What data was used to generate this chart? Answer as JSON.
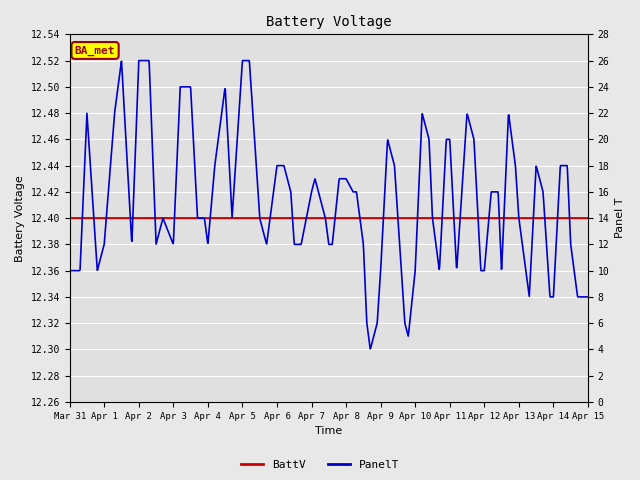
{
  "title": "Battery Voltage",
  "xlabel": "Time",
  "ylabel_left": "Battery Voltage",
  "ylabel_right": "Panel T",
  "ylim_left": [
    12.26,
    12.54
  ],
  "ylim_right": [
    0,
    28
  ],
  "batt_v": 12.4,
  "fig_bg_color": "#e8e8e8",
  "plot_bg_color": "#e0e0e0",
  "line_color_batt": "#cc0000",
  "line_color_panel": "#0000cc",
  "annotation_text": "BA_met",
  "annotation_bg": "#ffff00",
  "annotation_border": "#990000",
  "annotation_text_color": "#990000",
  "x_tick_labels": [
    "Mar 31",
    "Apr 1",
    "Apr 2",
    "Apr 3",
    "Apr 4",
    "Apr 5",
    "Apr 6",
    "Apr 7",
    "Apr 8",
    "Apr 9",
    "Apr 10",
    "Apr 11",
    "Apr 12",
    "Apr 13",
    "Apr 14",
    "Apr 15"
  ],
  "yticks_left": [
    12.26,
    12.28,
    12.3,
    12.32,
    12.34,
    12.36,
    12.38,
    12.4,
    12.42,
    12.44,
    12.46,
    12.48,
    12.5,
    12.52,
    12.54
  ],
  "yticks_right": [
    0,
    2,
    4,
    6,
    8,
    10,
    12,
    14,
    16,
    18,
    20,
    22,
    24,
    26,
    28
  ],
  "panel_t_keypoints": [
    [
      0.0,
      10
    ],
    [
      0.3,
      10
    ],
    [
      0.5,
      22
    ],
    [
      0.8,
      10
    ],
    [
      1.0,
      12
    ],
    [
      1.3,
      22
    ],
    [
      1.5,
      26
    ],
    [
      1.8,
      12
    ],
    [
      2.0,
      26
    ],
    [
      2.3,
      26
    ],
    [
      2.5,
      12
    ],
    [
      2.7,
      14
    ],
    [
      3.0,
      12
    ],
    [
      3.2,
      24
    ],
    [
      3.5,
      24
    ],
    [
      3.7,
      14
    ],
    [
      3.9,
      14
    ],
    [
      4.0,
      12
    ],
    [
      4.2,
      18
    ],
    [
      4.5,
      24
    ],
    [
      4.7,
      14
    ],
    [
      5.0,
      26
    ],
    [
      5.2,
      26
    ],
    [
      5.5,
      14
    ],
    [
      5.7,
      12
    ],
    [
      6.0,
      18
    ],
    [
      6.2,
      18
    ],
    [
      6.4,
      16
    ],
    [
      6.5,
      12
    ],
    [
      6.7,
      12
    ],
    [
      7.0,
      16
    ],
    [
      7.1,
      17
    ],
    [
      7.2,
      16
    ],
    [
      7.4,
      14
    ],
    [
      7.5,
      12
    ],
    [
      7.6,
      12
    ],
    [
      7.8,
      17
    ],
    [
      8.0,
      17
    ],
    [
      8.2,
      16
    ],
    [
      8.3,
      16
    ],
    [
      8.5,
      12
    ],
    [
      8.6,
      6
    ],
    [
      8.7,
      4
    ],
    [
      8.9,
      6
    ],
    [
      9.0,
      10
    ],
    [
      9.2,
      20
    ],
    [
      9.4,
      18
    ],
    [
      9.5,
      14
    ],
    [
      9.7,
      6
    ],
    [
      9.8,
      5
    ],
    [
      10.0,
      10
    ],
    [
      10.2,
      22
    ],
    [
      10.4,
      20
    ],
    [
      10.5,
      14
    ],
    [
      10.7,
      10
    ],
    [
      10.9,
      20
    ],
    [
      11.0,
      20
    ],
    [
      11.2,
      10
    ],
    [
      11.3,
      14
    ],
    [
      11.5,
      22
    ],
    [
      11.7,
      20
    ],
    [
      11.9,
      10
    ],
    [
      12.0,
      10
    ],
    [
      12.2,
      16
    ],
    [
      12.4,
      16
    ],
    [
      12.5,
      10
    ],
    [
      12.7,
      22
    ],
    [
      12.9,
      18
    ],
    [
      13.0,
      14
    ],
    [
      13.2,
      10
    ],
    [
      13.3,
      8
    ],
    [
      13.5,
      18
    ],
    [
      13.7,
      16
    ],
    [
      13.9,
      8
    ],
    [
      14.0,
      8
    ],
    [
      14.2,
      18
    ],
    [
      14.4,
      18
    ],
    [
      14.5,
      12
    ],
    [
      14.7,
      8
    ],
    [
      15.0,
      8
    ]
  ]
}
